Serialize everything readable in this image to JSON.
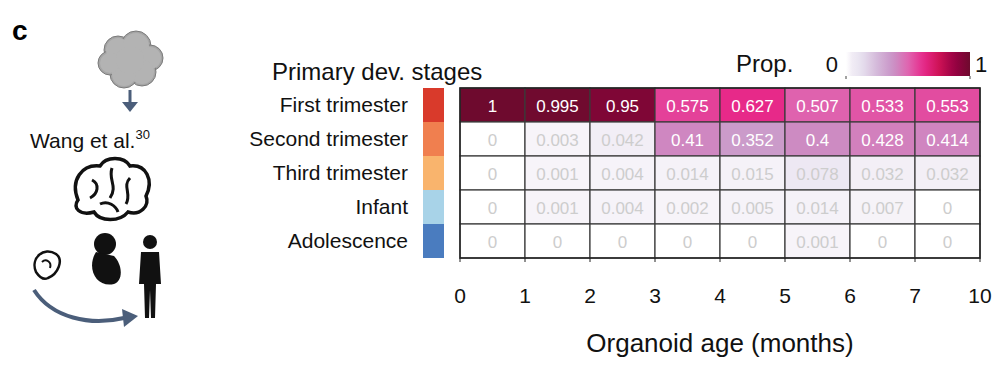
{
  "panel_label": "c",
  "source": {
    "text": "Wang et al.",
    "ref": "30"
  },
  "chart_data": {
    "type": "heatmap",
    "title": "Primary dev. stages",
    "categories": [
      "First trimester",
      "Second trimester",
      "Third trimester",
      "Infant",
      "Adolescence"
    ],
    "colors": [
      "#d93a2b",
      "#f07f4f",
      "#f9b46d",
      "#a8d3e8",
      "#4a7cbf"
    ],
    "x_label": "Organoid age (months)",
    "bins": [
      0,
      1,
      2,
      3,
      4,
      5,
      6,
      7,
      10
    ],
    "cells": [
      [
        1,
        0.995,
        0.95,
        0.575,
        0.627,
        0.507,
        0.533,
        0.553
      ],
      [
        0,
        0.003,
        0.042,
        0.41,
        0.352,
        0.4,
        0.428,
        0.414
      ],
      [
        0,
        0.001,
        0.004,
        0.014,
        0.015,
        0.078,
        0.032,
        0.032
      ],
      [
        0,
        0.001,
        0.004,
        0.002,
        0.005,
        0.014,
        0.007,
        0
      ],
      [
        0,
        0,
        0,
        0,
        0,
        0.001,
        0,
        0
      ]
    ],
    "data_labels": true,
    "colorbar": {
      "label": "Prop.",
      "range": [
        0,
        1
      ],
      "ticks": [
        0,
        1
      ]
    }
  }
}
